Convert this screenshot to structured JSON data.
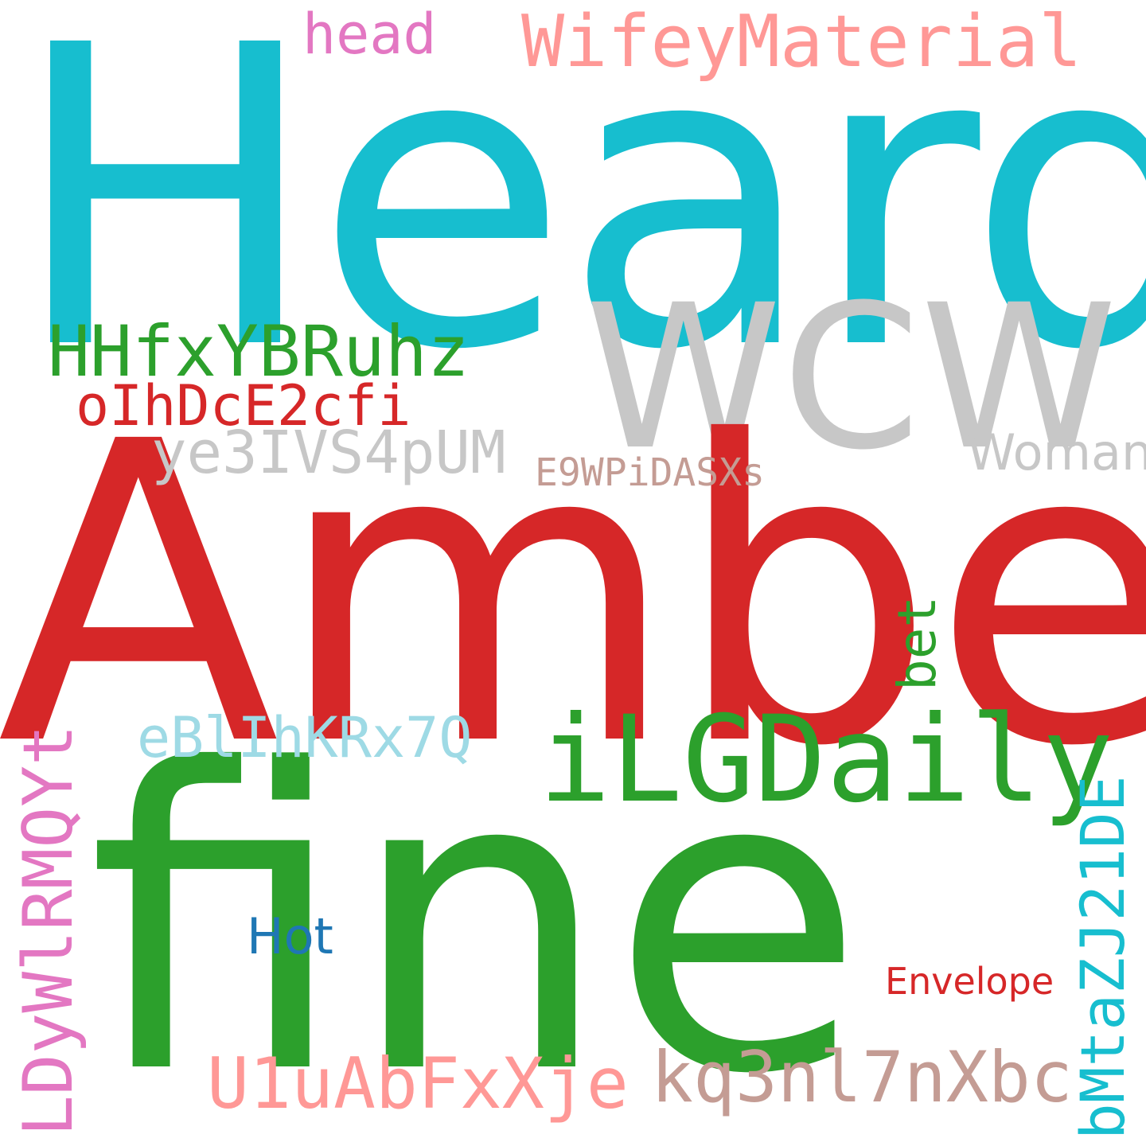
{
  "words": {
    "heard": "Heard",
    "amber": "Amber",
    "fine": "fine",
    "wcw": "WCW",
    "wifey": "WifeyMaterial",
    "head": "head",
    "hhf": "HHfxYBRuhz",
    "oih": "oIhDcE2cfi",
    "ye3": "ye3IVS4pUM",
    "woman": "Woman",
    "e9w": "E9WPiDASXs",
    "bet": "bet",
    "ebl": "eBlIhKRx7Q",
    "ilg": "iLGDaily",
    "ldy": "LDyWlRMQYt",
    "hot": "Hot",
    "bmt": "bMtaZJ21DE",
    "env": "Envelope",
    "u1u": "U1uAbFxXje",
    "kq3": "kq3nl7nXbc"
  },
  "colors": {
    "background": "#ffffff",
    "cyan": "#17becf",
    "red": "#d62728",
    "green": "#2ca02c",
    "light_gray": "#c7c7c7",
    "salmon": "#ff9896",
    "pink": "#e377c2",
    "tan": "#c49c94",
    "light_blue": "#9edae5",
    "blue": "#1f77b4"
  }
}
